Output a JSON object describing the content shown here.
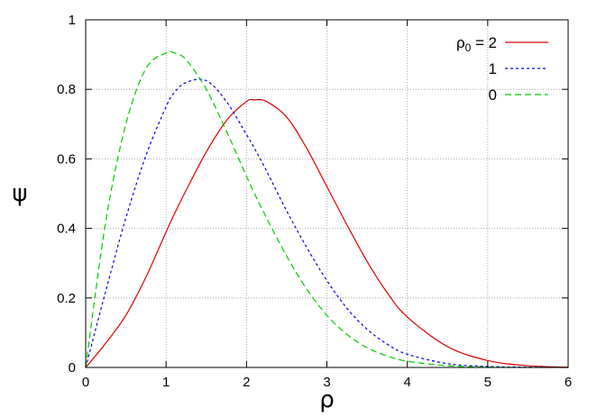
{
  "chart_data": {
    "type": "line",
    "xlabel": "ρ",
    "ylabel": "ψ",
    "xlim": [
      0,
      6
    ],
    "ylim": [
      0,
      1
    ],
    "grid": true,
    "legend_position": "top-right",
    "legend_title": "ρ₀ =",
    "x_ticks": [
      "0",
      "1",
      "2",
      "3",
      "4",
      "5",
      "6"
    ],
    "y_ticks": [
      "0",
      "0.2",
      "0.4",
      "0.6",
      "0.8",
      "1"
    ],
    "x": [
      0,
      0.25,
      0.5,
      0.75,
      1,
      1.1,
      1.25,
      1.5,
      1.75,
      2,
      2.1,
      2.25,
      2.5,
      2.75,
      3,
      3.25,
      3.5,
      3.75,
      4,
      4.5,
      5,
      5.5,
      6
    ],
    "series": [
      {
        "name": "2",
        "color": "#e00000",
        "dash": "solid",
        "values": [
          0,
          0.07,
          0.15,
          0.26,
          0.39,
          0.44,
          0.51,
          0.62,
          0.71,
          0.765,
          0.77,
          0.765,
          0.72,
          0.63,
          0.52,
          0.41,
          0.305,
          0.215,
          0.145,
          0.06,
          0.02,
          0.005,
          0.001
        ]
      },
      {
        "name": "1",
        "color": "#0000e0",
        "dash": "short",
        "values": [
          0,
          0.22,
          0.43,
          0.61,
          0.75,
          0.79,
          0.82,
          0.825,
          0.765,
          0.67,
          0.63,
          0.565,
          0.45,
          0.345,
          0.25,
          0.17,
          0.11,
          0.067,
          0.038,
          0.011,
          0.003,
          0.001,
          0
        ]
      },
      {
        "name": "0",
        "color": "#00cc00",
        "dash": "long",
        "values": [
          0,
          0.42,
          0.7,
          0.86,
          0.905,
          0.905,
          0.885,
          0.8,
          0.68,
          0.55,
          0.5,
          0.43,
          0.32,
          0.225,
          0.15,
          0.095,
          0.057,
          0.033,
          0.018,
          0.005,
          0.001,
          0,
          0
        ]
      }
    ]
  }
}
